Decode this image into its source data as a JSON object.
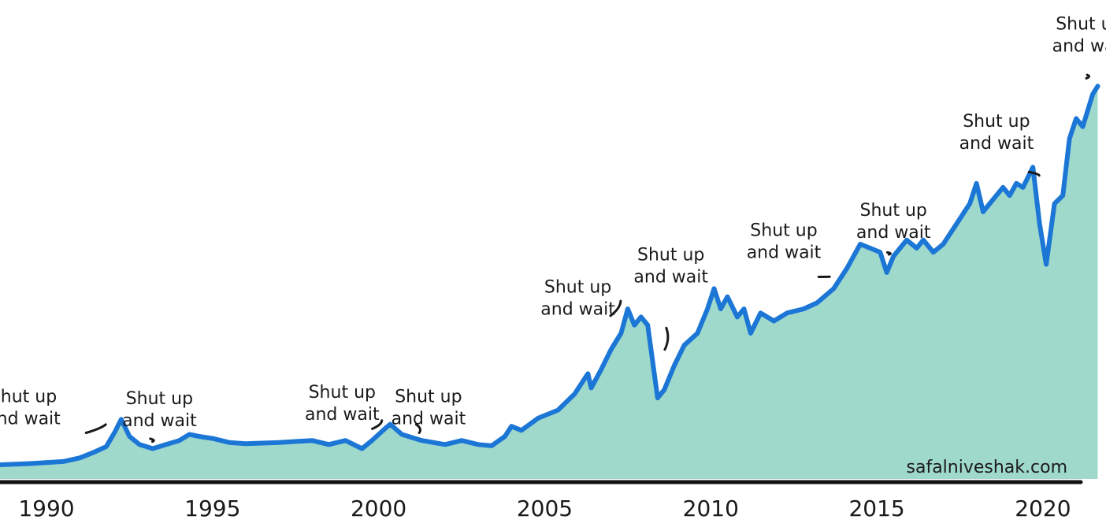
{
  "chart_data": {
    "type": "area",
    "title": "",
    "xlabel": "",
    "ylabel": "",
    "xlim": [
      1988.6,
      2021.9
    ],
    "ylim": [
      0,
      100
    ],
    "grid": false,
    "legend": "none",
    "x_ticks": [
      1990,
      1995,
      2000,
      2005,
      2010,
      2015,
      2020
    ],
    "x_tick_labels": [
      "1990",
      "1995",
      "2000",
      "2005",
      "2010",
      "2015",
      "2020"
    ],
    "line_color": "#1b76d6",
    "fill_color": "#9fd9cc",
    "axis_color": "#111111",
    "series": [
      {
        "values": [
          [
            1988.6,
            3.5
          ],
          [
            1989.5,
            3.8
          ],
          [
            1990.5,
            4.3
          ],
          [
            1991.0,
            5.2
          ],
          [
            1991.4,
            6.5
          ],
          [
            1991.8,
            8.0
          ],
          [
            1992.05,
            11.5
          ],
          [
            1992.25,
            14.7
          ],
          [
            1992.5,
            10.5
          ],
          [
            1992.8,
            8.5
          ],
          [
            1993.2,
            7.5
          ],
          [
            1993.6,
            8.5
          ],
          [
            1994.0,
            9.5
          ],
          [
            1994.3,
            11.0
          ],
          [
            1994.6,
            10.5
          ],
          [
            1995.0,
            10.0
          ],
          [
            1995.5,
            9.0
          ],
          [
            1996.0,
            8.7
          ],
          [
            1997.0,
            9.0
          ],
          [
            1998.0,
            9.5
          ],
          [
            1998.5,
            8.5
          ],
          [
            1999.0,
            9.5
          ],
          [
            1999.5,
            7.5
          ],
          [
            1999.8,
            9.5
          ],
          [
            2000.2,
            12.5
          ],
          [
            2000.35,
            13.5
          ],
          [
            2000.7,
            11.0
          ],
          [
            2001.3,
            9.5
          ],
          [
            2002.0,
            8.5
          ],
          [
            2002.5,
            9.5
          ],
          [
            2003.0,
            8.5
          ],
          [
            2003.4,
            8.2
          ],
          [
            2003.8,
            10.5
          ],
          [
            2004.0,
            13.0
          ],
          [
            2004.3,
            12.0
          ],
          [
            2004.8,
            15.0
          ],
          [
            2005.4,
            17.0
          ],
          [
            2005.9,
            21.0
          ],
          [
            2006.3,
            26.0
          ],
          [
            2006.4,
            22.5
          ],
          [
            2006.7,
            27.0
          ],
          [
            2007.0,
            32.0
          ],
          [
            2007.3,
            36.0
          ],
          [
            2007.5,
            42.0
          ],
          [
            2007.7,
            38.0
          ],
          [
            2007.9,
            40.0
          ],
          [
            2008.1,
            38.0
          ],
          [
            2008.4,
            20.0
          ],
          [
            2008.6,
            22.0
          ],
          [
            2008.9,
            28.0
          ],
          [
            2009.2,
            33.0
          ],
          [
            2009.6,
            36.0
          ],
          [
            2009.9,
            42.0
          ],
          [
            2010.1,
            47.0
          ],
          [
            2010.3,
            42.0
          ],
          [
            2010.5,
            45.0
          ],
          [
            2010.8,
            40.0
          ],
          [
            2011.0,
            42.0
          ],
          [
            2011.2,
            36.0
          ],
          [
            2011.5,
            41.0
          ],
          [
            2011.9,
            39.0
          ],
          [
            2012.3,
            41.0
          ],
          [
            2012.8,
            42.0
          ],
          [
            2013.2,
            43.5
          ],
          [
            2013.7,
            47.0
          ],
          [
            2014.1,
            52.0
          ],
          [
            2014.5,
            58.0
          ],
          [
            2014.8,
            57.0
          ],
          [
            2015.1,
            56.0
          ],
          [
            2015.3,
            51.0
          ],
          [
            2015.5,
            55.0
          ],
          [
            2015.9,
            59.0
          ],
          [
            2016.2,
            57.0
          ],
          [
            2016.4,
            59.0
          ],
          [
            2016.7,
            56.0
          ],
          [
            2017.0,
            58.0
          ],
          [
            2017.4,
            63.0
          ],
          [
            2017.8,
            68.0
          ],
          [
            2018.0,
            73.0
          ],
          [
            2018.2,
            66.0
          ],
          [
            2018.5,
            69.0
          ],
          [
            2018.8,
            72.0
          ],
          [
            2019.0,
            70.0
          ],
          [
            2019.2,
            73.0
          ],
          [
            2019.4,
            72.0
          ],
          [
            2019.7,
            77.0
          ],
          [
            2019.9,
            63.0
          ],
          [
            2020.1,
            53.0
          ],
          [
            2020.35,
            68.0
          ],
          [
            2020.6,
            70.0
          ],
          [
            2020.8,
            84.0
          ],
          [
            2021.0,
            89.0
          ],
          [
            2021.2,
            87.0
          ],
          [
            2021.5,
            95.0
          ],
          [
            2021.65,
            97.0
          ]
        ]
      }
    ],
    "annotations": [
      {
        "text": [
          "Shut up",
          "and wait"
        ],
        "x": 1989.3,
        "y": 19.0,
        "pointer_to": [
          1992.0,
          11.5
        ]
      },
      {
        "text": [
          "Shut up",
          "and wait"
        ],
        "x": 1993.4,
        "y": 18.5,
        "pointer_to": [
          1993.1,
          8.0
        ]
      },
      {
        "text": [
          "Shut up",
          "and wait"
        ],
        "x": 1998.9,
        "y": 20.0,
        "pointer_to": [
          2000.2,
          12.5
        ]
      },
      {
        "text": [
          "Shut up",
          "and wait"
        ],
        "x": 2001.5,
        "y": 19.0,
        "pointer_to": [
          2001.1,
          11.5
        ]
      },
      {
        "text": [
          "Shut up",
          "and wait"
        ],
        "x": 2006.0,
        "y": 46.0,
        "pointer_to": [
          2007.4,
          42.0
        ]
      },
      {
        "text": [
          "Shut up",
          "and wait"
        ],
        "x": 2008.8,
        "y": 54.0,
        "pointer_to": [
          2008.6,
          30.0
        ]
      },
      {
        "text": [
          "Shut up",
          "and wait"
        ],
        "x": 2012.2,
        "y": 60.0,
        "pointer_to": [
          2013.7,
          48.0
        ]
      },
      {
        "text": [
          "Shut up",
          "and wait"
        ],
        "x": 2015.5,
        "y": 65.0,
        "pointer_to": [
          2015.3,
          54.0
        ]
      },
      {
        "text": [
          "Shut up",
          "and wait"
        ],
        "x": 2018.6,
        "y": 87.0,
        "pointer_to": [
          2020.0,
          73.0
        ]
      },
      {
        "text": [
          "Shut up",
          "and wait"
        ],
        "x": 2021.4,
        "y": 111.0,
        "pointer_to": [
          2021.3,
          97.0
        ]
      }
    ]
  },
  "watermark": "safalniveshak.com"
}
